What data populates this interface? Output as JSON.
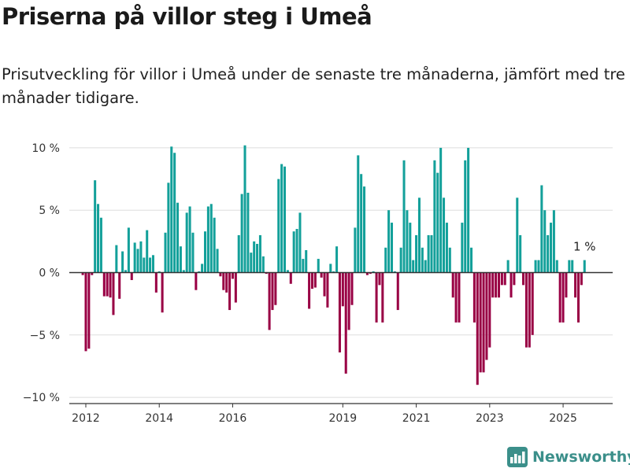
{
  "header": {
    "title": "Priserna på villor steg i Umeå",
    "subtitle": "Prisutveckling för villor i Umeå under de senaste tre månaderna, jämfört med tre månader tidigare."
  },
  "brand": {
    "name": "Newsworthy",
    "icon": "bar-chart-logo-icon",
    "color": "#3b8f8a"
  },
  "chart_data": {
    "type": "bar",
    "ylim": [
      -10.5,
      10.5
    ],
    "xlim": [
      2011.55,
      2026.35
    ],
    "y_ticks": [
      {
        "value": 10,
        "label": "10 %"
      },
      {
        "value": 5,
        "label": "5 %"
      },
      {
        "value": 0,
        "label": "0 %"
      },
      {
        "value": -5,
        "label": "−5 %"
      },
      {
        "value": -10,
        "label": "−10 %"
      }
    ],
    "x_ticks": [
      {
        "value": 2012,
        "label": "2012"
      },
      {
        "value": 2014,
        "label": "2014"
      },
      {
        "value": 2016,
        "label": "2016"
      },
      {
        "value": 2019,
        "label": "2019"
      },
      {
        "value": 2021,
        "label": "2021"
      },
      {
        "value": 2023,
        "label": "2023"
      },
      {
        "value": 2025,
        "label": "2025"
      }
    ],
    "grid": true,
    "colors": {
      "positive": "#13a09a",
      "negative": "#990044"
    },
    "annotation": {
      "text": "1 %",
      "value": 1
    },
    "x_start": 2011.917,
    "x_step": 0.08333,
    "values": [
      -0.2,
      -6.3,
      -6.1,
      -0.2,
      7.4,
      5.5,
      4.4,
      -1.9,
      -1.9,
      -2.0,
      -3.4,
      2.2,
      -2.1,
      1.7,
      0.2,
      3.6,
      -0.6,
      2.4,
      1.9,
      2.5,
      1.2,
      3.4,
      1.2,
      1.4,
      -1.6,
      0.1,
      -3.2,
      3.2,
      7.2,
      10.1,
      9.6,
      5.6,
      2.1,
      0.2,
      4.8,
      5.3,
      3.2,
      -1.4,
      0.1,
      0.7,
      3.3,
      5.3,
      5.5,
      4.4,
      1.9,
      -0.3,
      -1.4,
      -1.6,
      -3.0,
      -0.5,
      -2.4,
      3.0,
      6.3,
      10.2,
      6.4,
      1.6,
      2.5,
      2.3,
      3.0,
      1.3,
      -0.1,
      -4.6,
      -3.0,
      -2.6,
      7.5,
      8.7,
      8.5,
      0.2,
      -0.9,
      3.3,
      3.5,
      4.8,
      1.1,
      1.8,
      -2.9,
      -1.3,
      -1.2,
      1.1,
      -0.4,
      -1.9,
      -2.8,
      0.7,
      0.1,
      2.1,
      -6.4,
      -2.7,
      -8.1,
      -4.6,
      -2.6,
      3.6,
      9.4,
      7.9,
      6.9,
      -0.2,
      -0.1,
      0.1,
      -4.0,
      -1.0,
      -4.0,
      2.0,
      5.0,
      4.0,
      0.1,
      -3.0,
      2.0,
      9.0,
      5.0,
      4.0,
      1.0,
      3.0,
      6.0,
      2.0,
      1.0,
      3.0,
      3.0,
      9.0,
      8.0,
      10.0,
      6.0,
      4.0,
      2.0,
      -2.0,
      -4.0,
      -4.0,
      4.0,
      9.0,
      10.0,
      2.0,
      -4.0,
      -9.0,
      -8.0,
      -8.0,
      -7.0,
      -6.0,
      -2.0,
      -2.0,
      -2.0,
      -1.0,
      -1.0,
      1.0,
      -2.0,
      -1.0,
      6.0,
      3.0,
      -1.0,
      -6.0,
      -6.0,
      -5.0,
      1.0,
      1.0,
      7.0,
      5.0,
      3.0,
      4.0,
      5.0,
      1.0,
      -4.0,
      -4.0,
      -2.0,
      1.0,
      1.0,
      -2.0,
      -4.0,
      -1.0,
      1.0
    ]
  }
}
